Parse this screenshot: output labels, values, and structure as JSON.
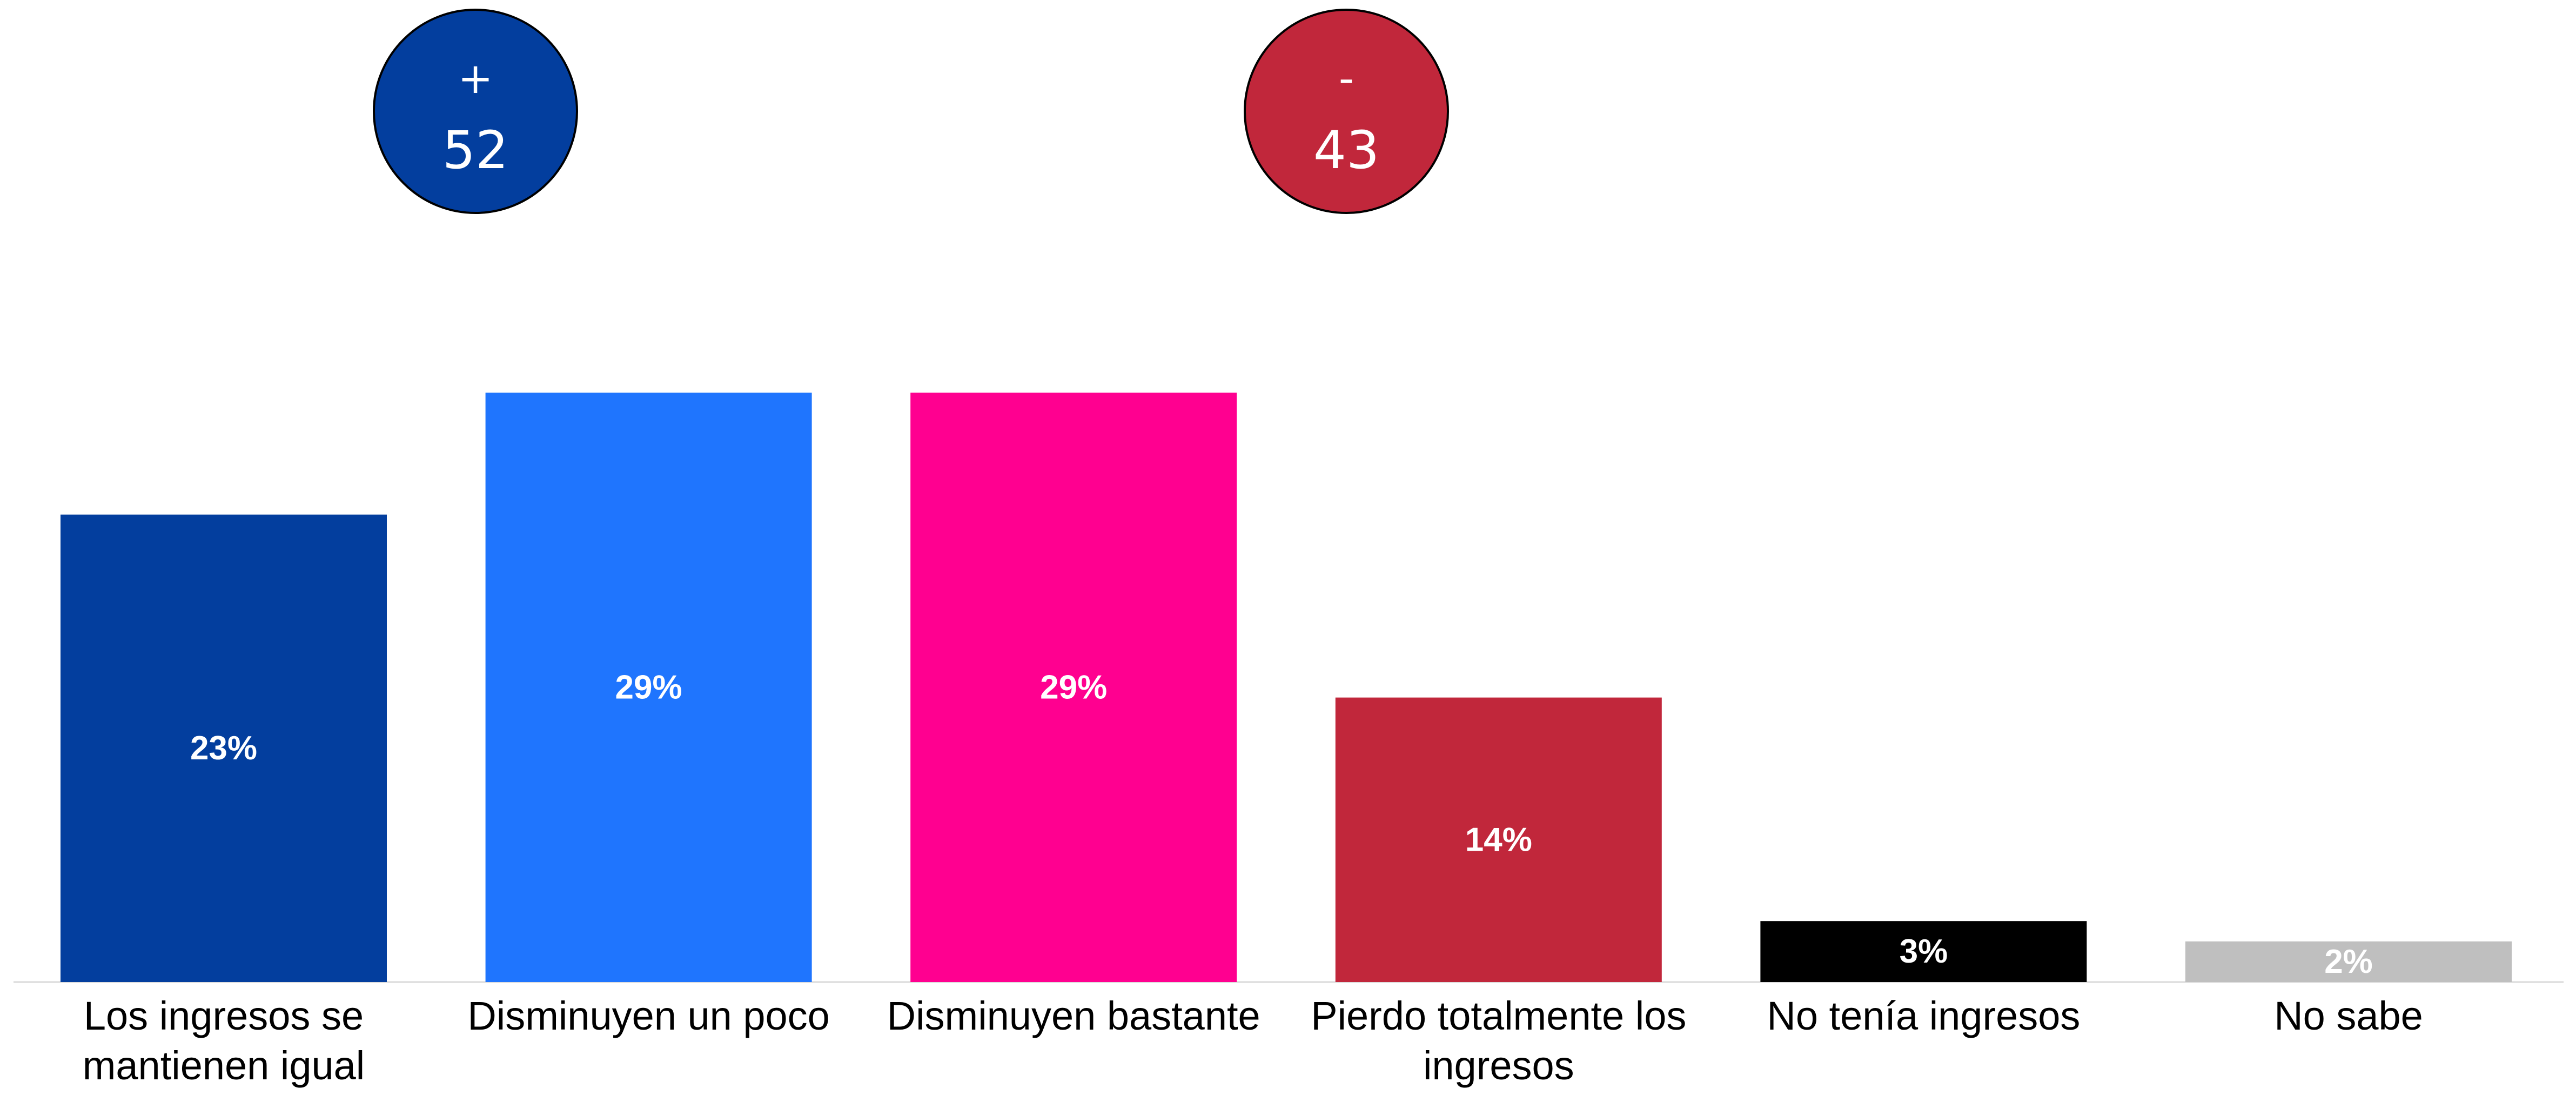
{
  "chart_data": {
    "type": "bar",
    "categories": [
      [
        "Los ingresos se",
        "mantienen igual"
      ],
      [
        "Disminuyen un poco"
      ],
      [
        "Disminuyen bastante"
      ],
      [
        "Pierdo totalmente los",
        "ingresos"
      ],
      [
        "No tenía ingresos"
      ],
      [
        "No sabe"
      ]
    ],
    "values": [
      23,
      29,
      29,
      14,
      3,
      2
    ],
    "value_labels": [
      "23%",
      "29%",
      "29%",
      "14%",
      "3%",
      "2%"
    ],
    "colors": [
      "#033E9E",
      "#1F75FE",
      "#FF0090",
      "#C1273B",
      "#000000",
      "#BFBFBF"
    ],
    "title": "",
    "xlabel": "",
    "ylabel": "",
    "grid": false,
    "legend": "none"
  },
  "summary_badges": [
    {
      "sign": "+",
      "value": "52",
      "color": "#033E9E"
    },
    {
      "sign": "-",
      "value": "43",
      "color": "#C1273B"
    }
  ]
}
